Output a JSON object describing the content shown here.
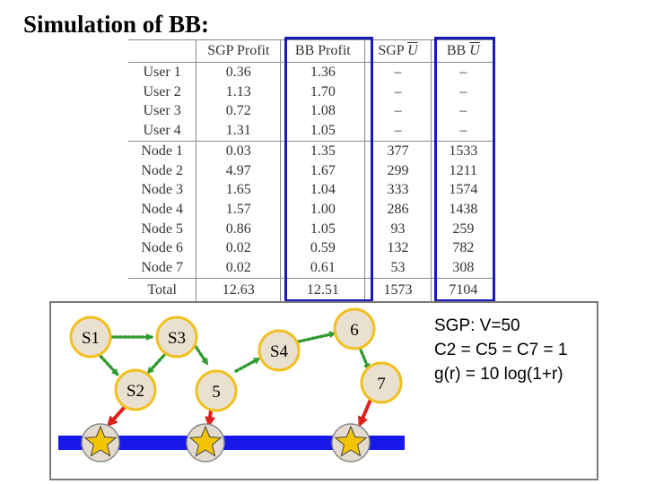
{
  "title": "Simulation of BB:",
  "table": {
    "headers": [
      "",
      "SGP Profit",
      "BB Profit",
      "SGP",
      "BB"
    ],
    "header_ubar": [
      "",
      "",
      "",
      "U",
      "U"
    ],
    "rows": [
      [
        "User 1",
        "0.36",
        "1.36",
        "–",
        "–"
      ],
      [
        "User 2",
        "1.13",
        "1.70",
        "–",
        "–"
      ],
      [
        "User 3",
        "0.72",
        "1.08",
        "–",
        "–"
      ],
      [
        "User 4",
        "1.31",
        "1.05",
        "–",
        "–"
      ],
      [
        "Node 1",
        "0.03",
        "1.35",
        "377",
        "1533"
      ],
      [
        "Node 2",
        "4.97",
        "1.67",
        "299",
        "1211"
      ],
      [
        "Node 3",
        "1.65",
        "1.04",
        "333",
        "1574"
      ],
      [
        "Node 4",
        "1.57",
        "1.00",
        "286",
        "1438"
      ],
      [
        "Node 5",
        "0.86",
        "1.05",
        "93",
        "259"
      ],
      [
        "Node 6",
        "0.02",
        "0.59",
        "132",
        "782"
      ],
      [
        "Node 7",
        "0.02",
        "0.61",
        "53",
        "308"
      ]
    ],
    "total": [
      "Total",
      "12.63",
      "12.51",
      "1573",
      "7104"
    ]
  },
  "diagram": {
    "nodes": {
      "s1": "S1",
      "s2": "S2",
      "s3": "S3",
      "s4": "S4",
      "n5": "5",
      "n6": "6",
      "n7": "7"
    }
  },
  "info": {
    "line1": "SGP: V=50",
    "line2": "C2 = C5 = C7 = 1",
    "line3": "g(r) = 10 log(1+r)"
  },
  "colors": {
    "highlight_box": "#1a1ab8",
    "node_fill": "#eae0cf",
    "node_border": "#f0c020",
    "green_arrow": "#2f9a2f",
    "red_arrow": "#e0201a",
    "bar": "#1818e8",
    "star": "#f5c400"
  }
}
